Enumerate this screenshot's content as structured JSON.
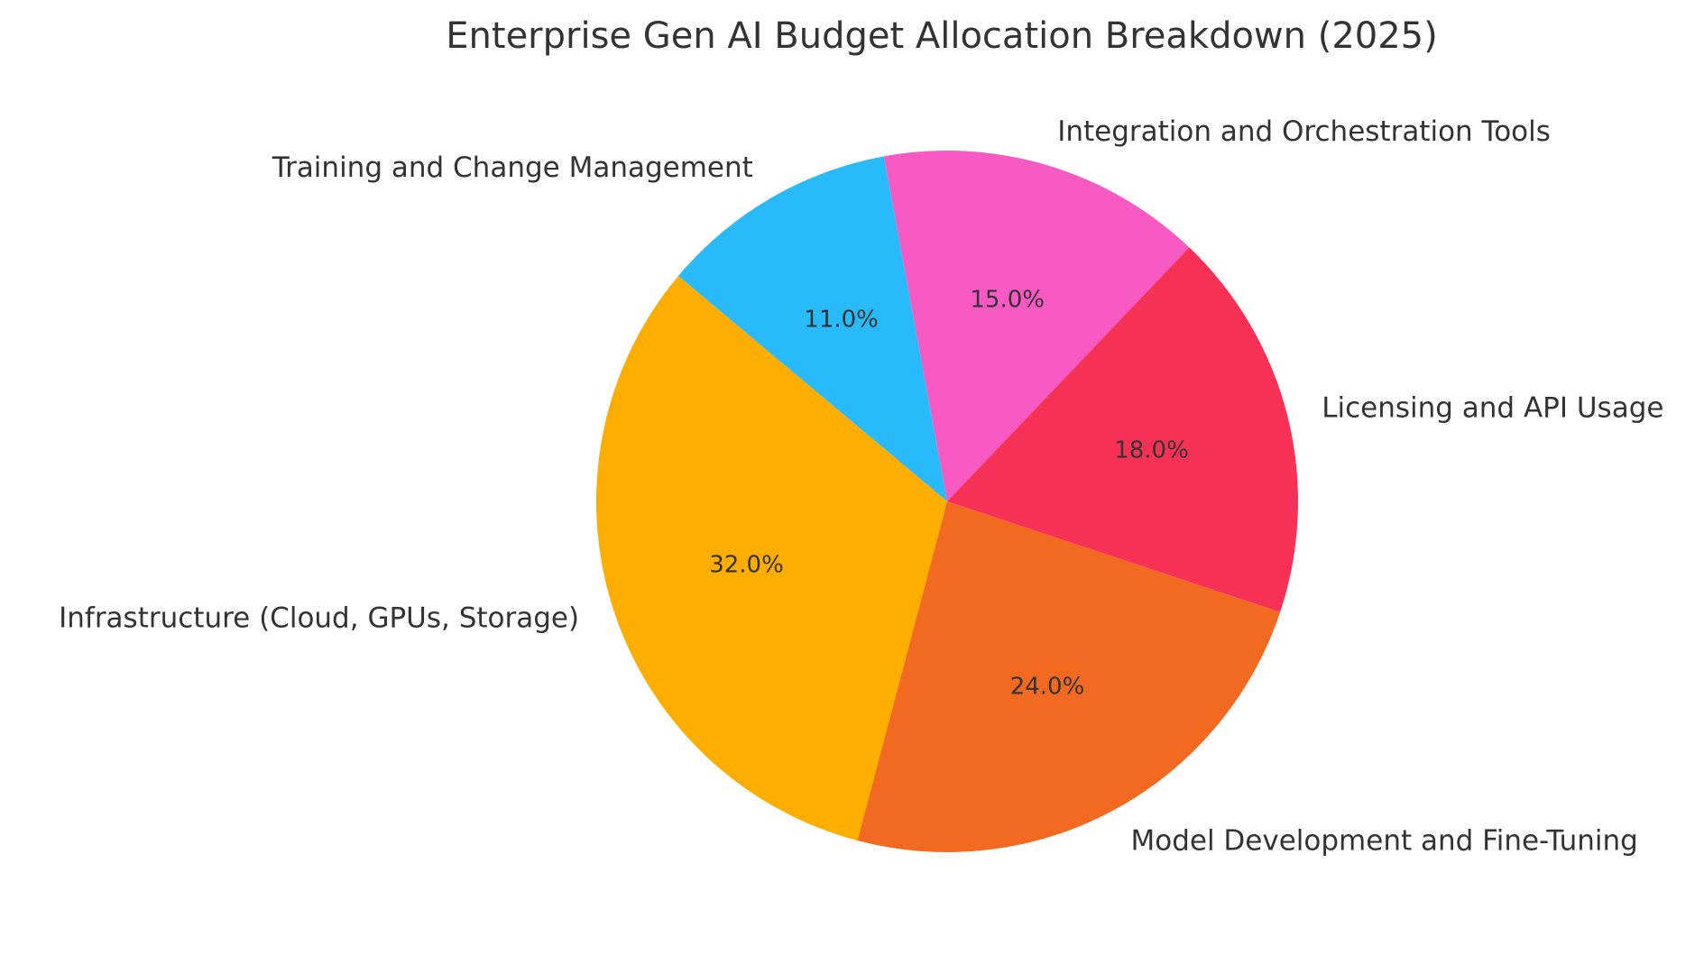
{
  "chart_data": {
    "type": "pie",
    "title": "Enterprise Gen AI Budget Allocation Breakdown (2025)",
    "start_angle_deg": 140,
    "direction": "counterclockwise",
    "slices": [
      {
        "label": "Infrastructure (Cloud, GPUs, Storage)",
        "value": 32.0,
        "pct_label": "32.0%",
        "color": "#FFAE00"
      },
      {
        "label": "Model Development and Fine-Tuning",
        "value": 24.0,
        "pct_label": "24.0%",
        "color": "#F26A21"
      },
      {
        "label": "Licensing and API Usage",
        "value": 18.0,
        "pct_label": "18.0%",
        "color": "#F73155"
      },
      {
        "label": "Integration and Orchestration Tools",
        "value": 15.0,
        "pct_label": "15.0%",
        "color": "#F859C2"
      },
      {
        "label": "Training and Change Management",
        "value": 11.0,
        "pct_label": "11.0%",
        "color": "#29BAFB"
      }
    ]
  }
}
